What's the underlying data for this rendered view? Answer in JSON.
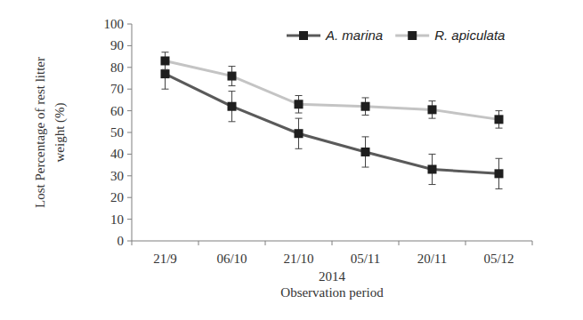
{
  "chart_data": {
    "type": "line",
    "categories": [
      "21/9",
      "06/10",
      "21/10",
      "05/11",
      "20/11",
      "05/12"
    ],
    "x_sublabel": "2014",
    "x_label": "Observation period",
    "y_label_lines": [
      "Lost Percentage of rest litter",
      "weight (%)"
    ],
    "ylim": [
      0,
      100
    ],
    "yticks": [
      0,
      10,
      20,
      30,
      40,
      50,
      60,
      70,
      80,
      90,
      100
    ],
    "grid": false,
    "legend": "top-right",
    "series": [
      {
        "name": "A. marina",
        "color": "#5a5a5a",
        "marker": "square",
        "values": [
          77,
          62,
          49.5,
          41,
          33,
          31
        ],
        "errors": [
          7,
          7,
          7,
          7,
          7,
          7
        ]
      },
      {
        "name": "R. apiculata",
        "color": "#c4c4c4",
        "marker": "square",
        "values": [
          83,
          76,
          63,
          62,
          60.5,
          56
        ],
        "errors": [
          4,
          4.5,
          4,
          4,
          4,
          4
        ]
      }
    ]
  }
}
